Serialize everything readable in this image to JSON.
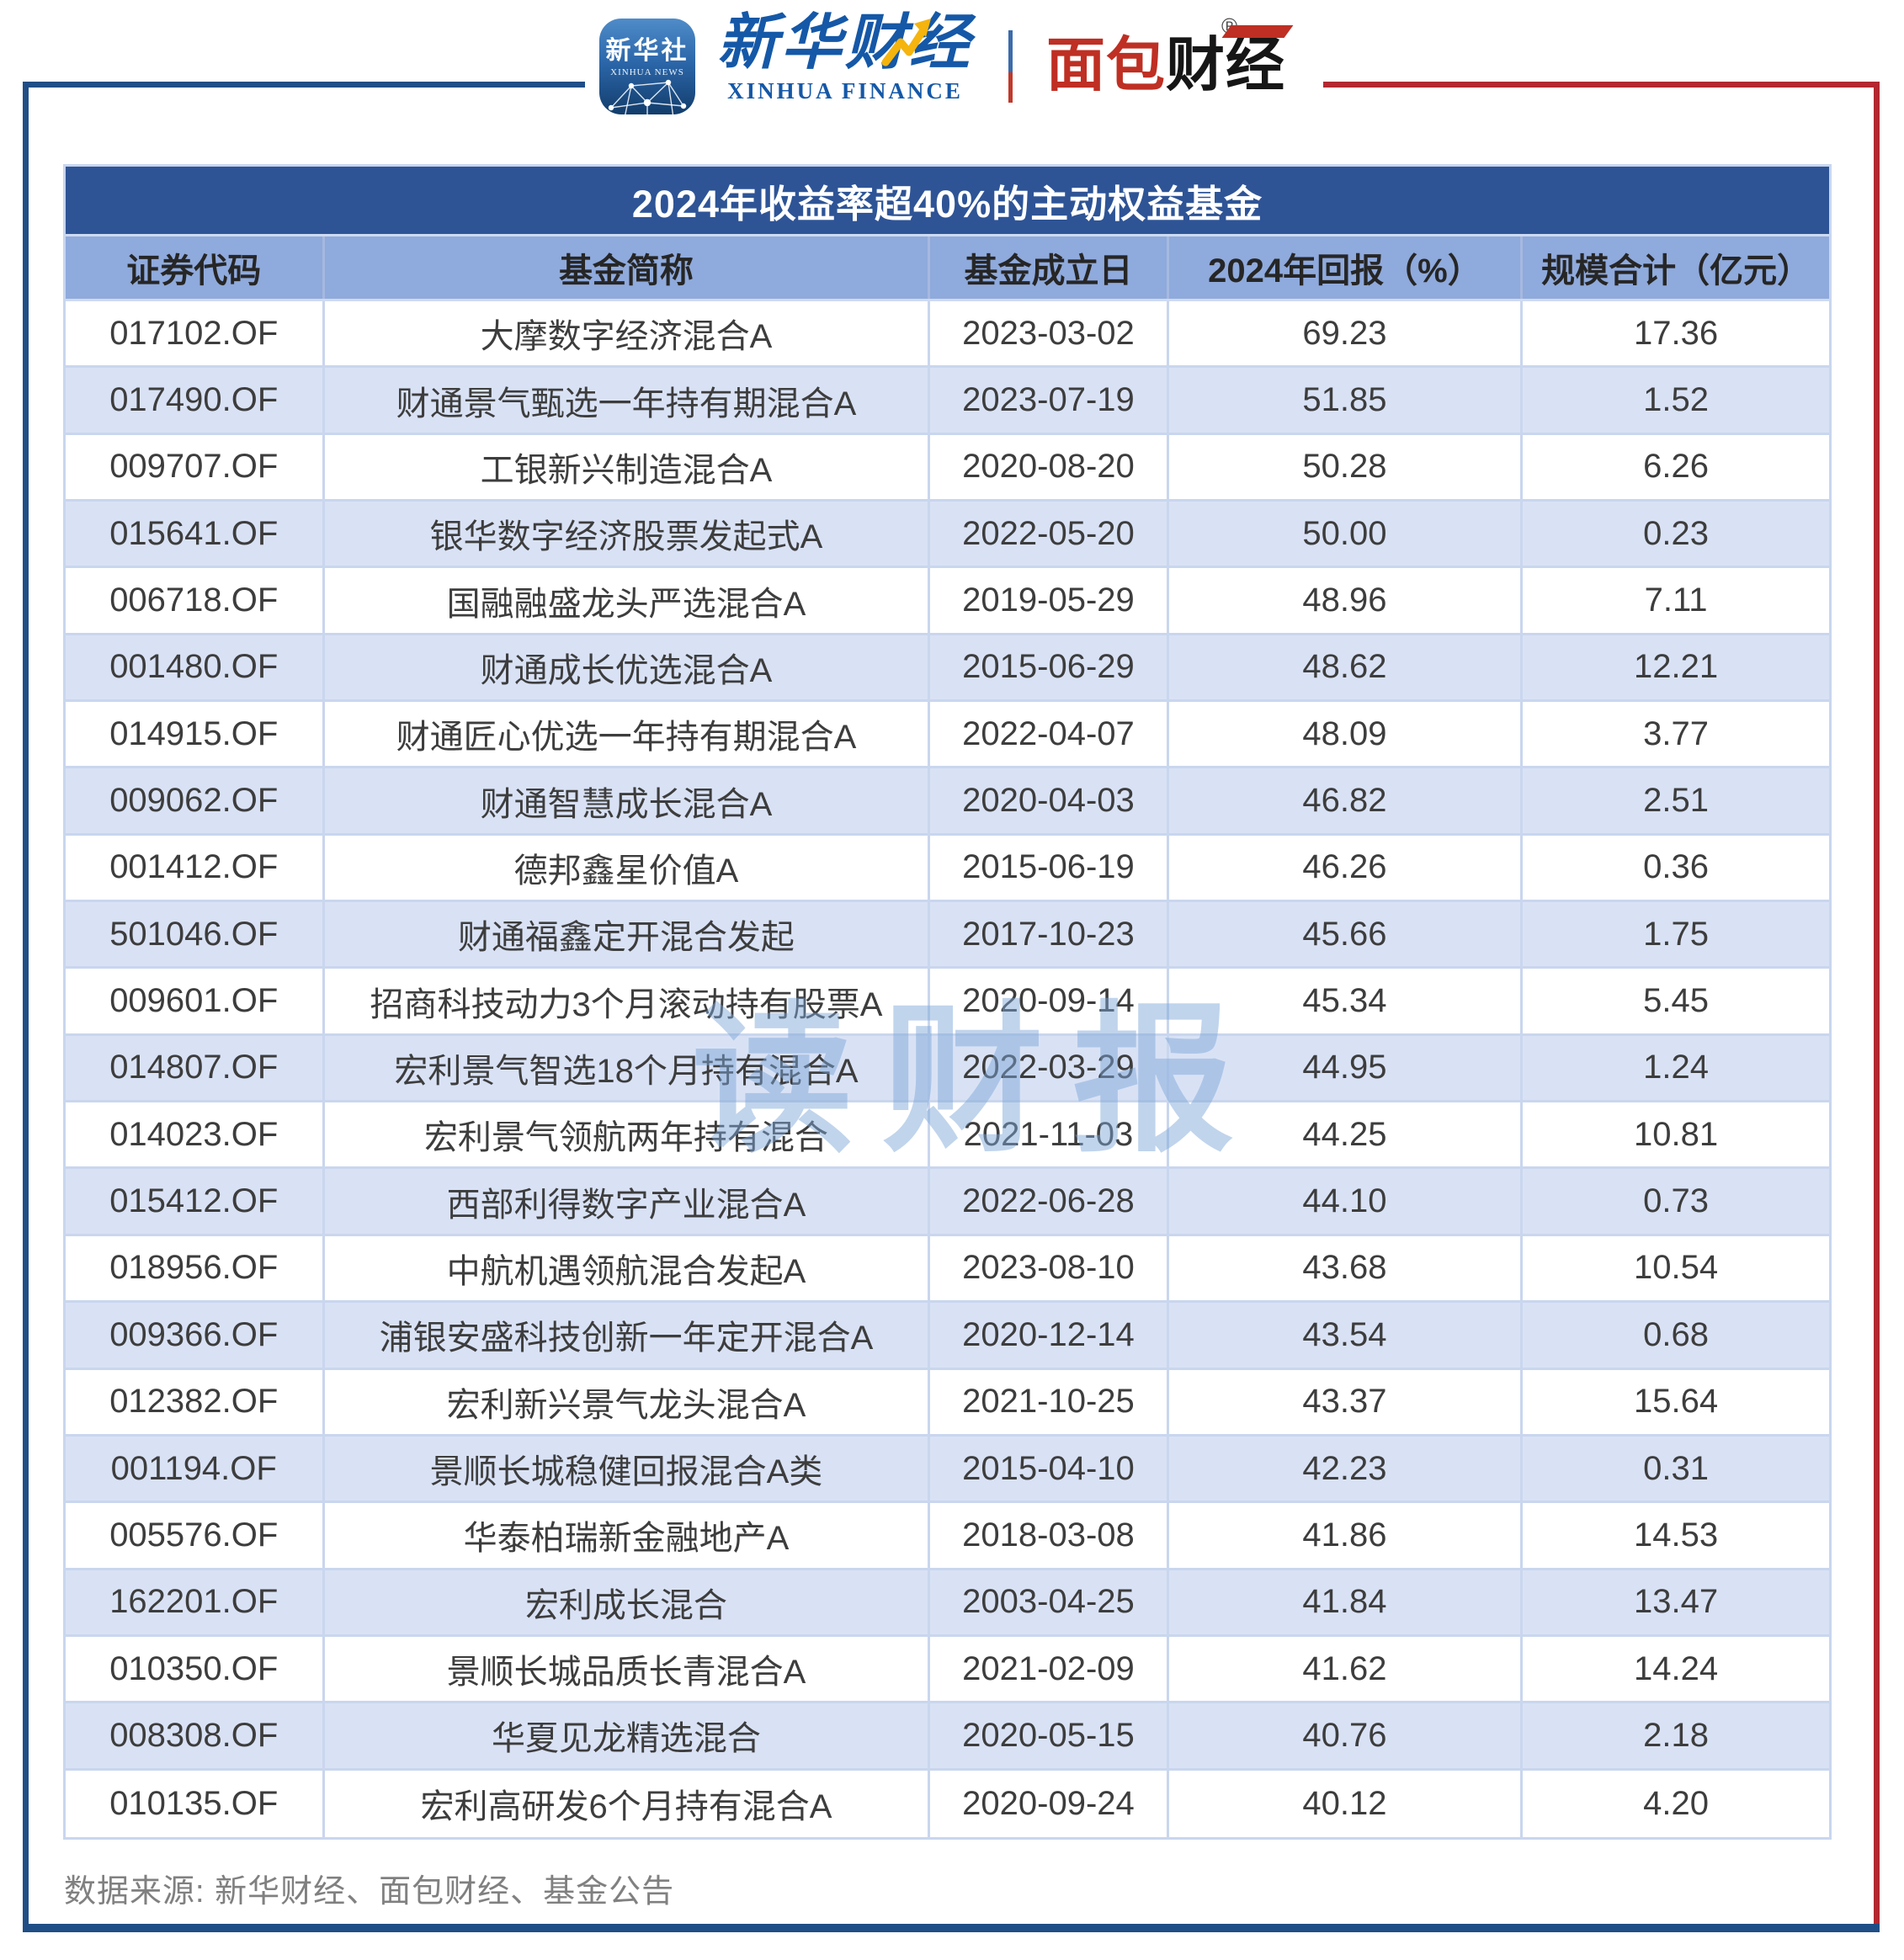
{
  "header": {
    "xinhua_app": {
      "cn": "新华社",
      "en": "XINHUA NEWS"
    },
    "xinhua_finance": {
      "cn": "新华财经",
      "en": "XINHUA FINANCE"
    },
    "bread_finance": {
      "part_red": "面包",
      "part_black": "财经",
      "registered": "®"
    }
  },
  "chart_data": {
    "type": "table",
    "title": "2024年收益率超40%的主动权益基金",
    "columns": [
      "证券代码",
      "基金简称",
      "基金成立日",
      "2024年回报（%）",
      "规模合计（亿元）"
    ],
    "column_keys": [
      "code",
      "fund_name",
      "inception_date",
      "return_2024_pct",
      "scale_100m_yuan"
    ],
    "rows": [
      [
        "017102.OF",
        "大摩数字经济混合A",
        "2023-03-02",
        "69.23",
        "17.36"
      ],
      [
        "017490.OF",
        "财通景气甄选一年持有期混合A",
        "2023-07-19",
        "51.85",
        "1.52"
      ],
      [
        "009707.OF",
        "工银新兴制造混合A",
        "2020-08-20",
        "50.28",
        "6.26"
      ],
      [
        "015641.OF",
        "银华数字经济股票发起式A",
        "2022-05-20",
        "50.00",
        "0.23"
      ],
      [
        "006718.OF",
        "国融融盛龙头严选混合A",
        "2019-05-29",
        "48.96",
        "7.11"
      ],
      [
        "001480.OF",
        "财通成长优选混合A",
        "2015-06-29",
        "48.62",
        "12.21"
      ],
      [
        "014915.OF",
        "财通匠心优选一年持有期混合A",
        "2022-04-07",
        "48.09",
        "3.77"
      ],
      [
        "009062.OF",
        "财通智慧成长混合A",
        "2020-04-03",
        "46.82",
        "2.51"
      ],
      [
        "001412.OF",
        "德邦鑫星价值A",
        "2015-06-19",
        "46.26",
        "0.36"
      ],
      [
        "501046.OF",
        "财通福鑫定开混合发起",
        "2017-10-23",
        "45.66",
        "1.75"
      ],
      [
        "009601.OF",
        "招商科技动力3个月滚动持有股票A",
        "2020-09-14",
        "45.34",
        "5.45"
      ],
      [
        "014807.OF",
        "宏利景气智选18个月持有混合A",
        "2022-03-29",
        "44.95",
        "1.24"
      ],
      [
        "014023.OF",
        "宏利景气领航两年持有混合",
        "2021-11-03",
        "44.25",
        "10.81"
      ],
      [
        "015412.OF",
        "西部利得数字产业混合A",
        "2022-06-28",
        "44.10",
        "0.73"
      ],
      [
        "018956.OF",
        "中航机遇领航混合发起A",
        "2023-08-10",
        "43.68",
        "10.54"
      ],
      [
        "009366.OF",
        "浦银安盛科技创新一年定开混合A",
        "2020-12-14",
        "43.54",
        "0.68"
      ],
      [
        "012382.OF",
        "宏利新兴景气龙头混合A",
        "2021-10-25",
        "43.37",
        "15.64"
      ],
      [
        "001194.OF",
        "景顺长城稳健回报混合A类",
        "2015-04-10",
        "42.23",
        "0.31"
      ],
      [
        "005576.OF",
        "华泰柏瑞新金融地产A",
        "2018-03-08",
        "41.86",
        "14.53"
      ],
      [
        "162201.OF",
        "宏利成长混合",
        "2003-04-25",
        "41.84",
        "13.47"
      ],
      [
        "010350.OF",
        "景顺长城品质长青混合A",
        "2021-02-09",
        "41.62",
        "14.24"
      ],
      [
        "008308.OF",
        "华夏见龙精选混合",
        "2020-05-15",
        "40.76",
        "2.18"
      ],
      [
        "010135.OF",
        "宏利高研发6个月持有混合A",
        "2020-09-24",
        "40.12",
        "4.20"
      ]
    ]
  },
  "watermark": "读财报",
  "footer": {
    "source": "数据来源: 新华财经、面包财经、基金公告"
  },
  "colors": {
    "title_bar": "#2E5496",
    "header_row": "#8FAADC",
    "row_alt": "#D9E2F5",
    "grid_line": "#C9D6EE",
    "frame_blue": "#1F4E86",
    "frame_red": "#B32830",
    "logo_blue": "#1558A7",
    "logo_red": "#BF2F23",
    "text_dark": "#3D3D3D",
    "footer_gray": "#808080"
  }
}
